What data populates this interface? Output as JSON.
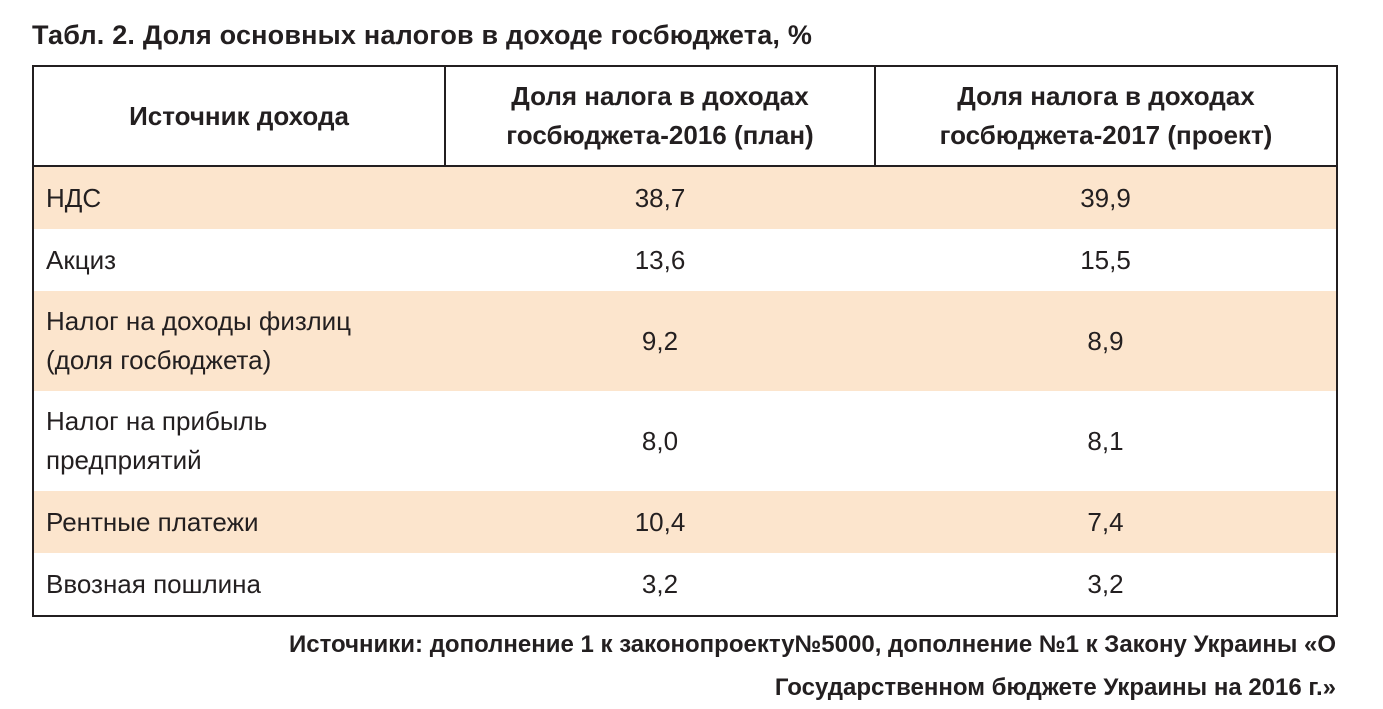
{
  "caption": "Табл. 2. Доля основных налогов в доходе госбюджета, %",
  "table": {
    "headers": [
      [
        "Источник дохода"
      ],
      [
        "Доля налога в доходах",
        "госбюджета-2016 (план)"
      ],
      [
        "Доля налога в доходах",
        "госбюджета-2017 (проект)"
      ]
    ],
    "rows": [
      {
        "source": [
          "НДС"
        ],
        "v2016": "38,7",
        "v2017": "39,9"
      },
      {
        "source": [
          "Акциз"
        ],
        "v2016": "13,6",
        "v2017": "15,5"
      },
      {
        "source": [
          "Налог на доходы физлиц",
          "(доля госбюджета)"
        ],
        "v2016": "9,2",
        "v2017": "8,9"
      },
      {
        "source": [
          "Налог на прибыль",
          "предприятий"
        ],
        "v2016": "8,0",
        "v2017": "8,1"
      },
      {
        "source": [
          "Рентные платежи"
        ],
        "v2016": "10,4",
        "v2017": "7,4"
      },
      {
        "source": [
          "Ввозная пошлина"
        ],
        "v2016": "3,2",
        "v2017": "3,2"
      }
    ]
  },
  "footnote": {
    "line1": "Источники: дополнение 1 к законопроекту№5000, дополнение №1 к Закону Украины «О",
    "line2": "Государственном бюджете Украины на 2016 г.»"
  },
  "colors": {
    "row_shade": "#fce5cd",
    "border": "#231f20"
  }
}
